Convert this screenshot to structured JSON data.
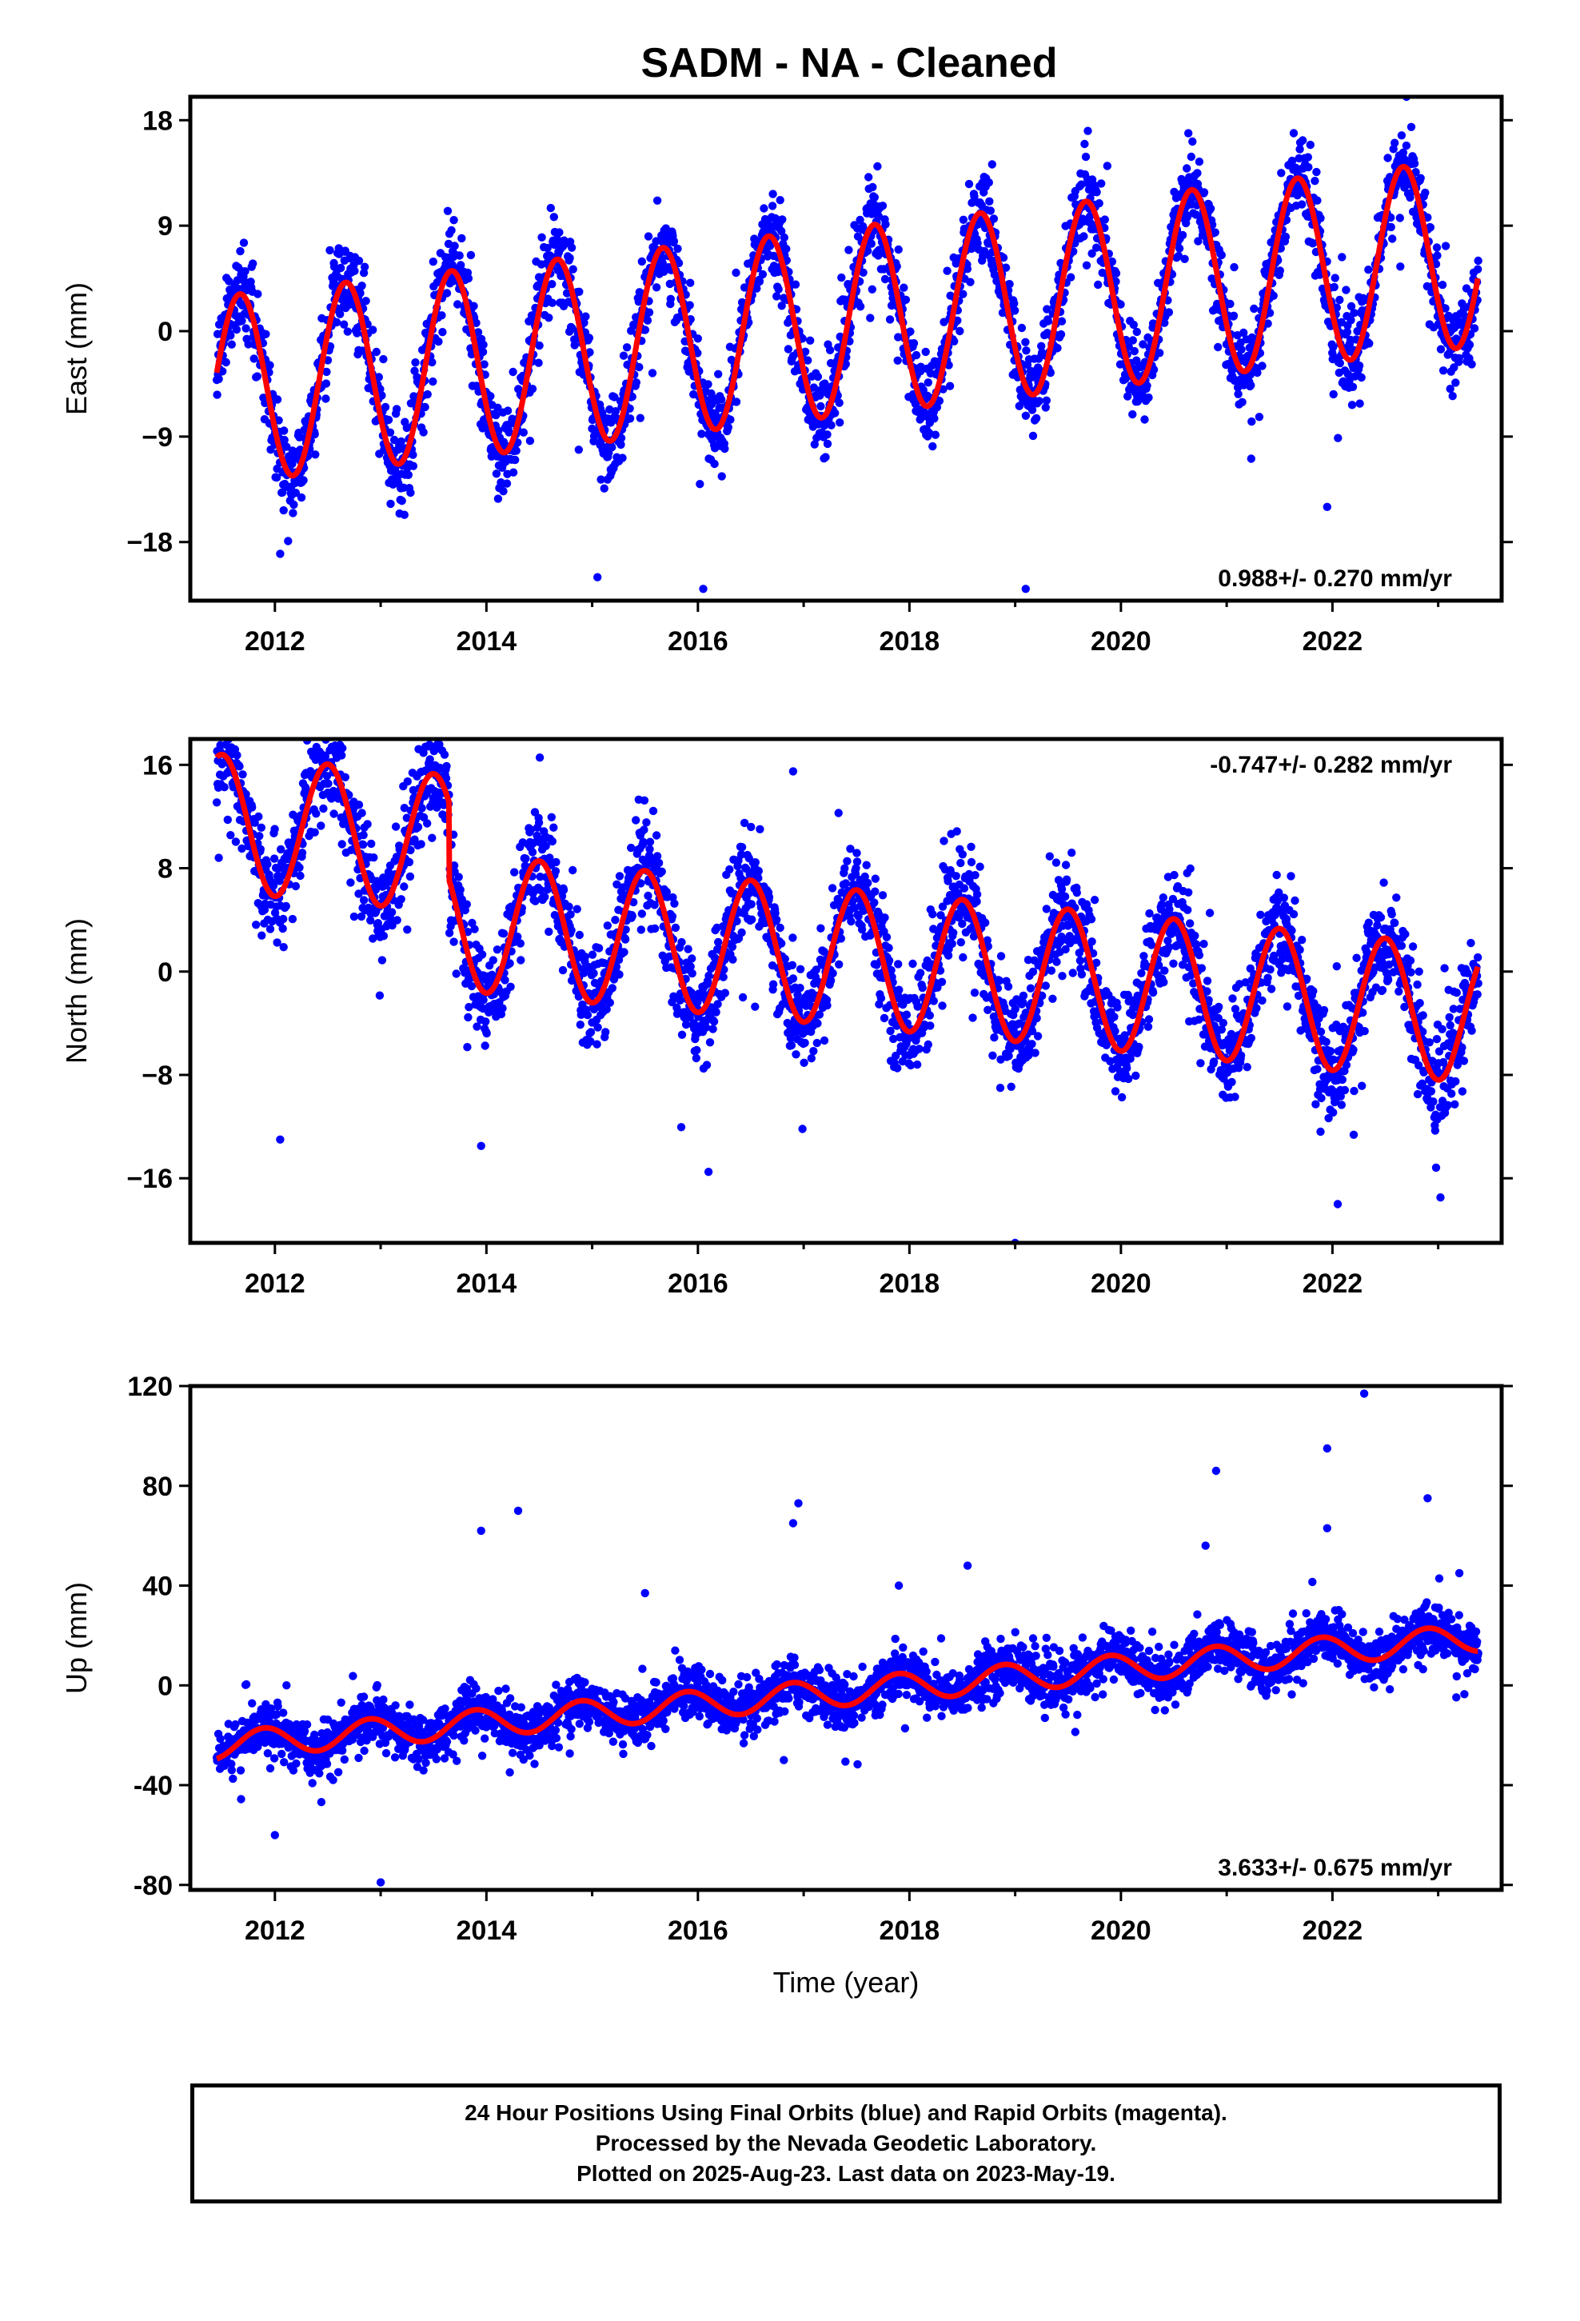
{
  "title": "SADM  - NA - Cleaned",
  "footer": {
    "lines": [
      "24 Hour Positions Using Final Orbits (blue) and Rapid Orbits (magenta).",
      "Processed by the Nevada Geodetic Laboratory.",
      "Plotted on 2025-Aug-23. Last data on 2023-May-19."
    ]
  },
  "colors": {
    "final_orbits": "#0000ff",
    "rapid_orbits": "#ff00ff",
    "model_fit": "#ff0000",
    "frame": "#000000"
  },
  "chart_data": [
    {
      "type": "scatter",
      "panel": "east",
      "ylabel": "East (mm)",
      "xlabel": "",
      "xlim": [
        2011.2,
        2023.6
      ],
      "ylim": [
        -23,
        20
      ],
      "yticks": [
        18,
        9,
        0,
        -9,
        -18
      ],
      "ytick_labels": [
        "18",
        "9",
        "0",
        "−9",
        "−18"
      ],
      "xticks": [
        2012,
        2014,
        2016,
        2018,
        2020,
        2022
      ],
      "xtick_labels": [
        "2012",
        "2014",
        "2016",
        "2018",
        "2020",
        "2022"
      ],
      "annotation": "0.988+/- 0.270 mm/yr",
      "annotation_position": "bottom-right",
      "data_start": 2011.45,
      "data_end": 2023.38,
      "model": {
        "offset_at_2011_5": -5.0,
        "trend_mm_per_yr": 0.988,
        "annual_amplitude": 8.0,
        "annual_peak_phase": 0.67,
        "annual_amp_growth_per_yr": 0.0
      },
      "scatter_sigma": 1.8,
      "outliers": [
        [
          2012.05,
          -19.0
        ],
        [
          2015.05,
          -21.0
        ],
        [
          2016.05,
          -22.0
        ],
        [
          2019.1,
          -22.0
        ],
        [
          2022.7,
          20.0
        ],
        [
          2021.95,
          -15.0
        ]
      ],
      "series": [
        {
          "name": "",
          "kind": "points",
          "color": "#0000ff"
        },
        {
          "name": "",
          "kind": "fit",
          "color": "#ff0000"
        }
      ]
    },
    {
      "type": "scatter",
      "panel": "north",
      "ylabel": "North (mm)",
      "xlabel": "",
      "xlim": [
        2011.2,
        2023.6
      ],
      "ylim": [
        -21,
        18
      ],
      "yticks": [
        16,
        8,
        0,
        -8,
        -16
      ],
      "ytick_labels": [
        "16",
        "8",
        "0",
        "−8",
        "−16"
      ],
      "xticks": [
        2012,
        2014,
        2016,
        2018,
        2020,
        2022
      ],
      "xtick_labels": [
        "2012",
        "2014",
        "2016",
        "2018",
        "2020",
        "2022"
      ],
      "annotation": "-0.747+/- 0.282 mm/yr",
      "annotation_position": "top-right",
      "data_start": 2011.45,
      "data_end": 2023.38,
      "model": {
        "offset_at_2011_5": 5.5,
        "trend_mm_per_yr": -0.747,
        "annual_amplitude": 5.3,
        "annual_peak_phase": 0.5,
        "early_offset_before": 2013.65,
        "early_offset_value": 6.0
      },
      "scatter_sigma": 1.9,
      "outliers": [
        [
          2016.9,
          15.5
        ],
        [
          2019.0,
          -21.0
        ],
        [
          2013.95,
          -13.5
        ],
        [
          2016.1,
          -15.5
        ],
        [
          2012.05,
          -13.0
        ],
        [
          2022.05,
          -18.0
        ]
      ],
      "series": [
        {
          "name": "",
          "kind": "points",
          "color": "#0000ff"
        },
        {
          "name": "",
          "kind": "fit",
          "color": "#ff0000"
        }
      ]
    },
    {
      "type": "scatter",
      "panel": "up",
      "ylabel": "Up (mm)",
      "xlabel": "Time (year)",
      "xlim": [
        2011.2,
        2023.6
      ],
      "ylim": [
        -82,
        120
      ],
      "yticks": [
        120,
        80,
        40,
        0,
        -40,
        -80
      ],
      "ytick_labels": [
        "120",
        "80",
        "40",
        "0",
        "-40",
        "-80"
      ],
      "xticks": [
        2012,
        2014,
        2016,
        2018,
        2020,
        2022
      ],
      "xtick_labels": [
        "2012",
        "2014",
        "2016",
        "2018",
        "2020",
        "2022"
      ],
      "annotation": "3.633+/- 0.675 mm/yr",
      "annotation_position": "bottom-right",
      "data_start": 2011.45,
      "data_end": 2023.38,
      "model": {
        "offset_at_2011_5": -24.0,
        "trend_mm_per_yr": 3.633,
        "annual_amplitude": 5.5,
        "annual_peak_phase": 0.9
      },
      "scatter_sigma": 5.0,
      "outliers": [
        [
          2013.95,
          62.0
        ],
        [
          2014.3,
          70.0
        ],
        [
          2016.95,
          73.0
        ],
        [
          2016.9,
          65.0
        ],
        [
          2020.9,
          86.0
        ],
        [
          2020.8,
          56.0
        ],
        [
          2021.95,
          95.0
        ],
        [
          2022.3,
          117.0
        ],
        [
          2022.9,
          75.0
        ],
        [
          2023.2,
          45.0
        ],
        [
          2013.0,
          -79.0
        ],
        [
          2012.0,
          -60.0
        ],
        [
          2018.55,
          48.0
        ],
        [
          2021.95,
          63.0
        ],
        [
          2015.5,
          37.0
        ],
        [
          2017.9,
          40.0
        ]
      ],
      "series": [
        {
          "name": "",
          "kind": "points",
          "color": "#0000ff"
        },
        {
          "name": "",
          "kind": "fit",
          "color": "#ff0000"
        }
      ]
    }
  ]
}
